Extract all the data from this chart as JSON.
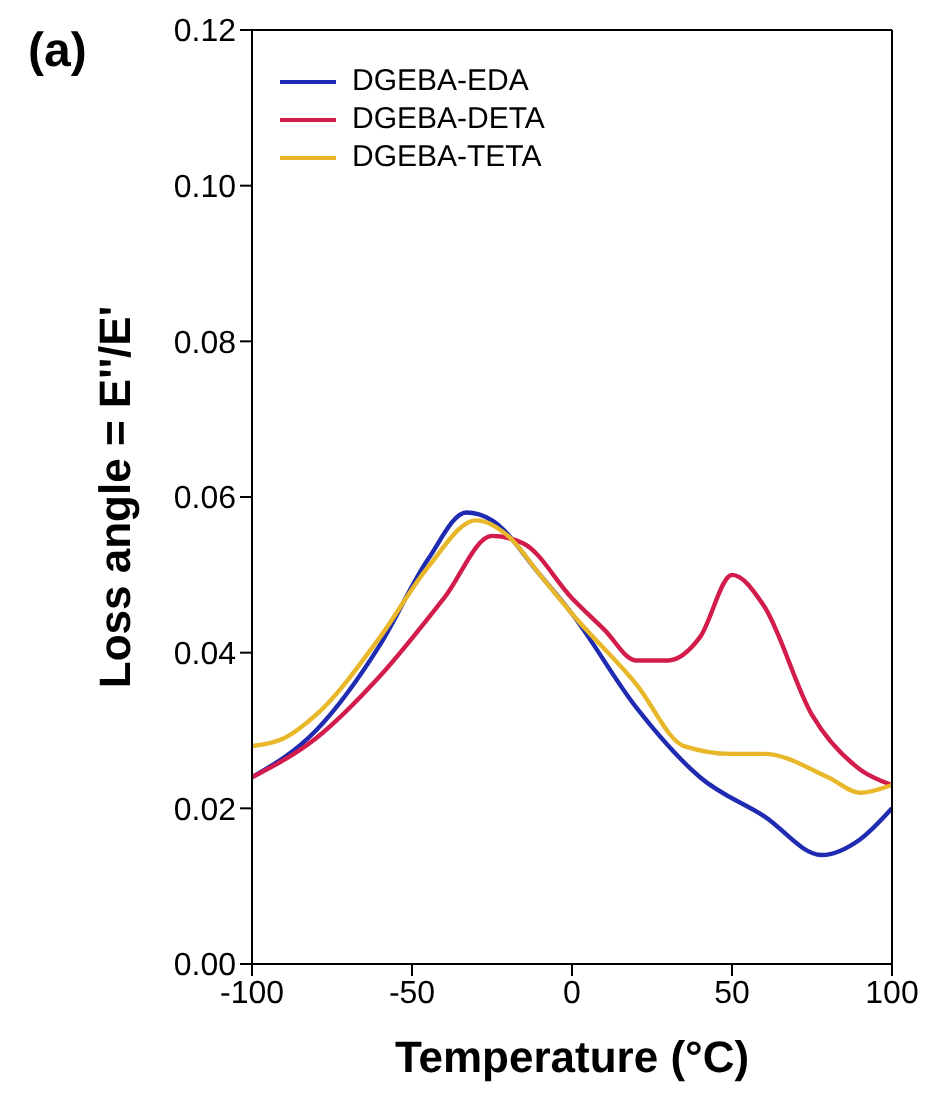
{
  "chart_data": {
    "type": "line",
    "title": "(a)",
    "xlabel": "Temperature (°C)",
    "ylabel": "Loss angle = E''/E'",
    "xlim": [
      -100,
      100
    ],
    "xticks": [
      -100,
      -50,
      0,
      50,
      100
    ],
    "ylim": [
      0,
      0.12
    ],
    "yticks": [
      {
        "value": 0,
        "label": "0.00"
      },
      {
        "value": 0.02,
        "label": "0.02"
      },
      {
        "value": 0.04,
        "label": "0.04"
      },
      {
        "value": 0.06,
        "label": "0.06"
      },
      {
        "value": 0.08,
        "label": "0.08"
      },
      {
        "value": 0.1,
        "label": "0.10"
      },
      {
        "value": 0.12,
        "label": "0.12"
      }
    ],
    "grid": false,
    "legend": "top left",
    "marker": "none",
    "line_style": "solid",
    "series": [
      {
        "name": "DGEBA-EDA",
        "color": "#1f2bb0",
        "x": [
          -100,
          -80,
          -60,
          -45,
          -33,
          -25,
          -10,
          0,
          20,
          40,
          60,
          78,
          90,
          100
        ],
        "values": [
          0.024,
          0.03,
          0.041,
          0.052,
          0.058,
          0.057,
          0.05,
          0.045,
          0.033,
          0.024,
          0.019,
          0.014,
          0.016,
          0.02
        ]
      },
      {
        "name": "DGEBA-DETA",
        "color": "#d21c4c",
        "x": [
          -100,
          -80,
          -60,
          -40,
          -25,
          -15,
          0,
          10,
          20,
          30,
          40,
          50,
          60,
          75,
          90,
          100
        ],
        "values": [
          0.024,
          0.029,
          0.037,
          0.047,
          0.055,
          0.054,
          0.047,
          0.043,
          0.039,
          0.039,
          0.042,
          0.05,
          0.046,
          0.032,
          0.025,
          0.023
        ]
      },
      {
        "name": "DGEBA-TETA",
        "color": "#e8b82a",
        "x": [
          -100,
          -90,
          -80,
          -60,
          -45,
          -30,
          -20,
          -10,
          0,
          20,
          35,
          50,
          60,
          80,
          90,
          100
        ],
        "values": [
          0.028,
          0.029,
          0.032,
          0.042,
          0.051,
          0.057,
          0.055,
          0.05,
          0.045,
          0.036,
          0.028,
          0.027,
          0.027,
          0.024,
          0.022,
          0.023
        ]
      }
    ]
  }
}
